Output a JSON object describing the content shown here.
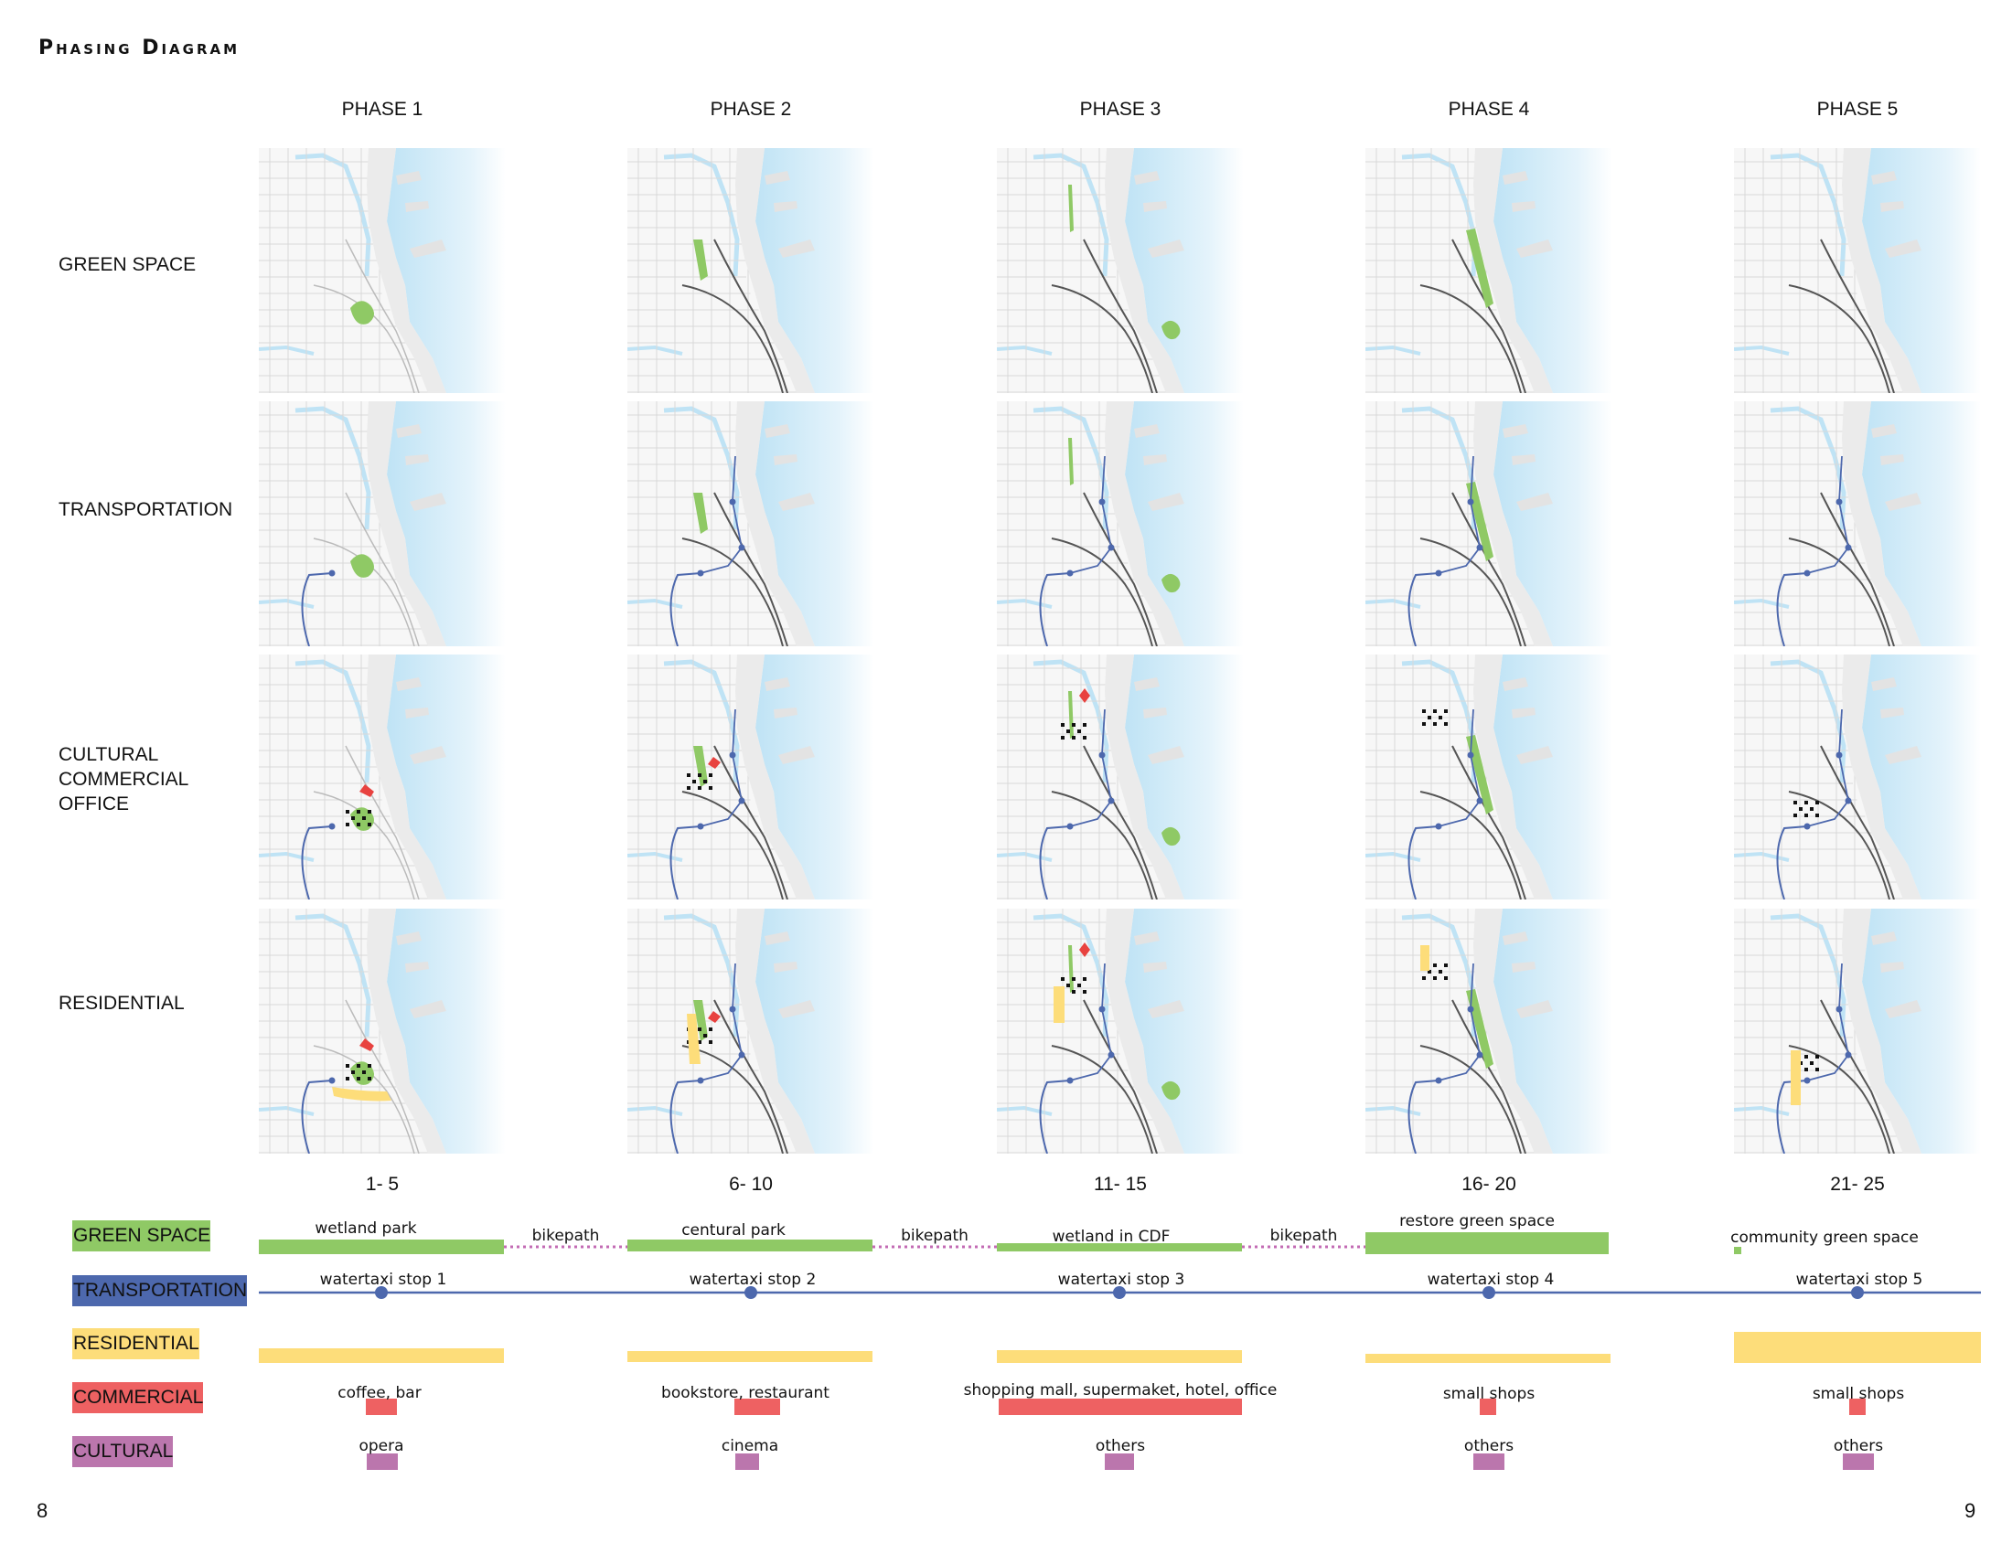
{
  "title": "Phasing Diagram",
  "phases": [
    "PHASE 1",
    "PHASE 2",
    "PHASE 3",
    "PHASE 4",
    "PHASE 5"
  ],
  "rows": [
    "GREEN SPACE",
    "TRANSPORTATION",
    "CULTURAL\nCOMMERCIAL\nOFFICE",
    "RESIDENTIAL"
  ],
  "ranges": [
    "1- 5",
    "6- 10",
    "11- 15",
    "16- 20",
    "21- 25"
  ],
  "legend": [
    {
      "label": "GREEN SPACE",
      "color": "#8fc965"
    },
    {
      "label": "TRANSPORTATION",
      "color": "#4d68ad"
    },
    {
      "label": "RESIDENTIAL",
      "color": "#fddd7a"
    },
    {
      "label": "COMMERCIAL",
      "color": "#ee6162"
    },
    {
      "label": "CULTURAL",
      "color": "#bb76ad"
    }
  ],
  "timeline": {
    "green": [
      "wetland park",
      "centural park",
      "wetland in CDF",
      "restore green space",
      "community green space"
    ],
    "bikepath": [
      "bikepath",
      "bikepath",
      "bikepath"
    ],
    "transport": [
      "watertaxi stop 1",
      "watertaxi stop 2",
      "watertaxi stop 3",
      "watertaxi stop 4",
      "watertaxi stop 5"
    ],
    "commercial": [
      "coffee, bar",
      "bookstore, restaurant",
      "shopping mall, supermaket, hotel, office",
      "small shops",
      "small shops"
    ],
    "cultural": [
      "opera",
      "cinema",
      "others",
      "others",
      "others"
    ]
  },
  "page_numbers": {
    "left": "8",
    "right": "9"
  }
}
